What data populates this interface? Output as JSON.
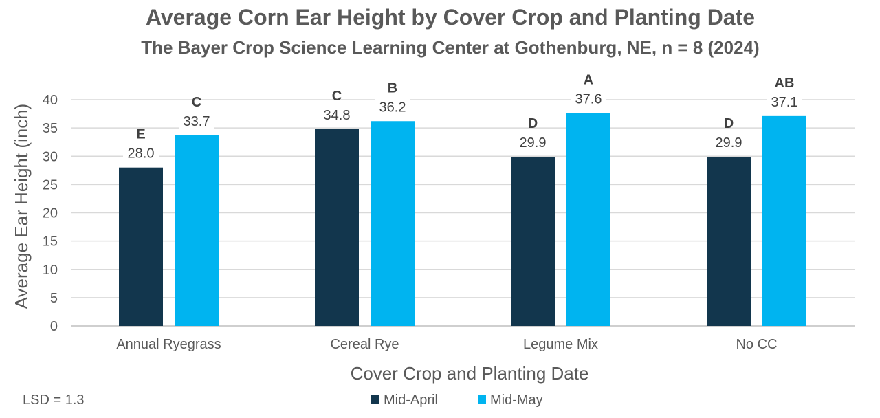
{
  "chart_data": {
    "type": "bar",
    "title": "Average Corn Ear Height by Cover Crop and Planting Date",
    "subtitle": "The Bayer Crop Science Learning Center at Gothenburg, NE, n = 8 (2024)",
    "xlabel": "Cover Crop and Planting Date",
    "ylabel": "Average Ear Height (inch)",
    "ylim": [
      0,
      40
    ],
    "yticks": [
      "0",
      "5",
      "10",
      "15",
      "20",
      "25",
      "30",
      "35",
      "40"
    ],
    "grid": true,
    "legend_position": "bottom",
    "categories": [
      "Annual Ryegrass",
      "Cereal Rye",
      "Legume Mix",
      "No CC"
    ],
    "series": [
      {
        "name": "Mid-April",
        "color": "#12364d",
        "values": [
          28.0,
          34.8,
          29.9,
          29.9
        ],
        "labels": [
          "28.0",
          "34.8",
          "29.9",
          "29.9"
        ],
        "letters": [
          "E",
          "C",
          "D",
          "D"
        ]
      },
      {
        "name": "Mid-May",
        "color": "#00b4f0",
        "values": [
          33.7,
          36.2,
          37.6,
          37.1
        ],
        "labels": [
          "33.7",
          "36.2",
          "37.6",
          "37.1"
        ],
        "letters": [
          "C",
          "B",
          "A",
          "AB"
        ]
      }
    ],
    "footnote": "LSD = 1.3"
  }
}
